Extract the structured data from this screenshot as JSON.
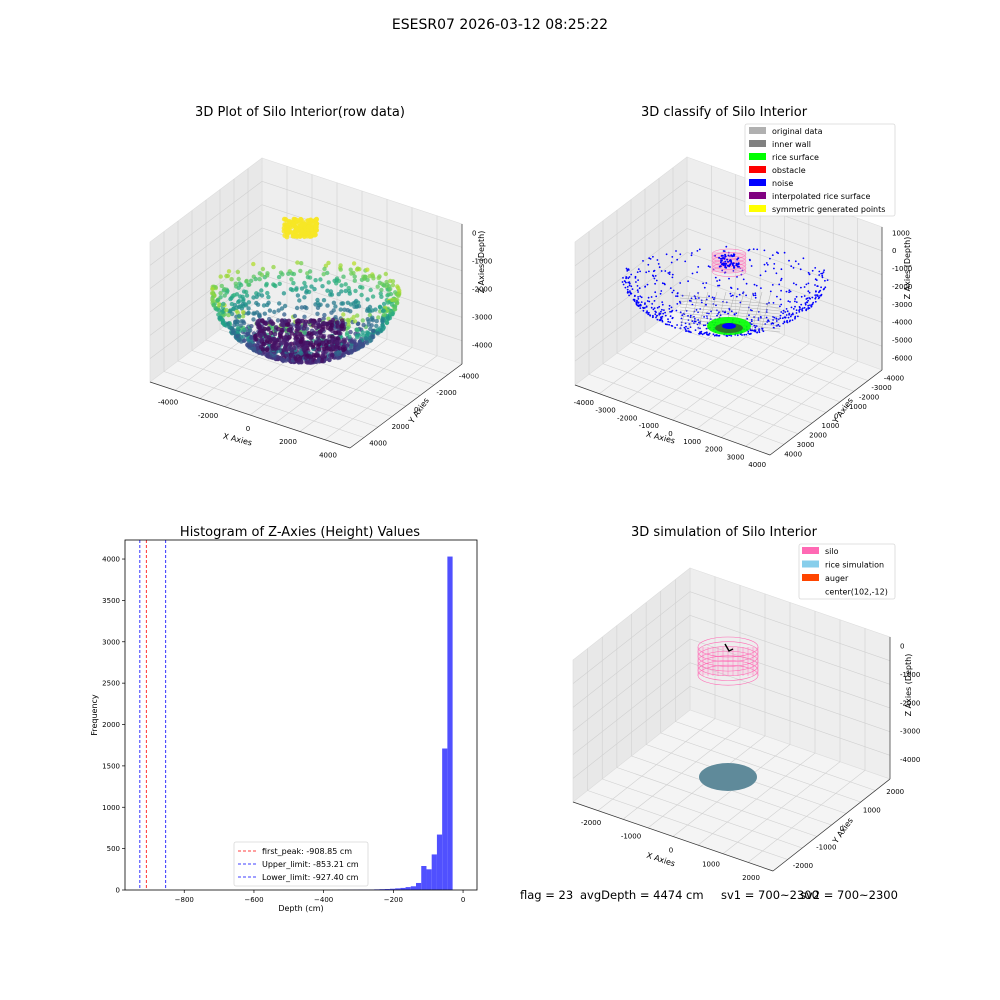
{
  "figure": {
    "title": "ESESR07 2026-03-12 08:25:22",
    "footer": {
      "flag": "flag = 23",
      "avg_depth": "avgDepth = 4474 cm",
      "sv1": "sv1 = 700~2300",
      "sv2": "sv2 = 700~2300"
    }
  },
  "colors": {
    "original_data": "#b0b0b0",
    "inner_wall": "#808080",
    "rice_surface": "#00ff00",
    "obstacle": "#ff0000",
    "noise": "#0000ff",
    "interpolated_rice_surface": "#800080",
    "symmetric_generated_points": "#ffff00",
    "silo": "#ff69b4",
    "rice_simulation": "#87ceeb",
    "auger": "#ff4500",
    "histogram_bar": "#5050ff"
  },
  "chart_data": [
    {
      "type": "scatter",
      "projection": "3d",
      "title": "3D Plot of Silo Interior(row data)",
      "xlabel": "X Axies",
      "ylabel": "Y Axies",
      "zlabel": "Z Axies (Depth)",
      "x_ticks": [
        "-4000",
        "-2000",
        "0",
        "2000",
        "4000"
      ],
      "y_ticks": [
        "-4000",
        "-2000",
        "0",
        "2000",
        "4000"
      ],
      "z_ticks": [
        "0",
        "-1000",
        "-2000",
        "-3000",
        "-4000"
      ],
      "xlim": [
        -4500,
        4500
      ],
      "ylim": [
        -4500,
        4500
      ],
      "zlim": [
        -4500,
        200
      ],
      "colormap": "viridis",
      "bowl_radius": 3900,
      "point_count": 1200
    },
    {
      "type": "scatter",
      "projection": "3d",
      "title": "3D classify of Silo Interior",
      "xlabel": "X Axies",
      "ylabel": "Y Axies",
      "zlabel": "Z Axies (Depth)",
      "x_ticks": [
        "-4000",
        "-3000",
        "-2000",
        "-1000",
        "0",
        "1000",
        "2000",
        "3000",
        "4000"
      ],
      "y_ticks": [
        "-4000",
        "-3000",
        "-2000",
        "-1000",
        "0",
        "1000",
        "2000",
        "3000",
        "4000"
      ],
      "z_ticks": [
        "1000",
        "0",
        "-1000",
        "-2000",
        "-3000",
        "-4000",
        "-5000",
        "-6000"
      ],
      "xlim": [
        -4200,
        4200
      ],
      "ylim": [
        -4200,
        4200
      ],
      "zlim": [
        -6500,
        1200
      ],
      "legend_position": "top-right",
      "legend": [
        {
          "label": "original data",
          "color_key": "original_data"
        },
        {
          "label": "inner wall",
          "color_key": "inner_wall"
        },
        {
          "label": "rice surface",
          "color_key": "rice_surface"
        },
        {
          "label": "obstacle",
          "color_key": "obstacle"
        },
        {
          "label": "noise",
          "color_key": "noise"
        },
        {
          "label": "interpolated rice surface",
          "color_key": "interpolated_rice_surface"
        },
        {
          "label": "symmetric generated points",
          "color_key": "symmetric_generated_points"
        }
      ]
    },
    {
      "type": "bar",
      "subtype": "histogram",
      "title": "Histogram of Z-Axies (Height) Values",
      "xlabel": "Depth (cm)",
      "ylabel": "Frequency",
      "xlim": [
        -970,
        40
      ],
      "ylim": [
        0,
        4230
      ],
      "x_ticks": [
        -800,
        -600,
        -400,
        -200,
        0
      ],
      "y_ticks": [
        0,
        500,
        1000,
        1500,
        2000,
        2500,
        3000,
        3500,
        4000
      ],
      "bin_width": 15,
      "bins": [
        {
          "x0": -360,
          "value": 2
        },
        {
          "x0": -345,
          "value": 3
        },
        {
          "x0": -330,
          "value": 3
        },
        {
          "x0": -315,
          "value": 4
        },
        {
          "x0": -300,
          "value": 5
        },
        {
          "x0": -285,
          "value": 5
        },
        {
          "x0": -270,
          "value": 6
        },
        {
          "x0": -255,
          "value": 8
        },
        {
          "x0": -240,
          "value": 10
        },
        {
          "x0": -225,
          "value": 12
        },
        {
          "x0": -210,
          "value": 15
        },
        {
          "x0": -195,
          "value": 20
        },
        {
          "x0": -180,
          "value": 25
        },
        {
          "x0": -165,
          "value": 35
        },
        {
          "x0": -150,
          "value": 45
        },
        {
          "x0": -135,
          "value": 85
        },
        {
          "x0": -120,
          "value": 290
        },
        {
          "x0": -105,
          "value": 250
        },
        {
          "x0": -90,
          "value": 430
        },
        {
          "x0": -75,
          "value": 670
        },
        {
          "x0": -60,
          "value": 1710
        },
        {
          "x0": -45,
          "value": 4030
        }
      ],
      "vlines": [
        {
          "label": "first_peak: -908.85 cm",
          "x": -908.85,
          "color": "#ff0000"
        },
        {
          "label": "Upper_limit: -853.21 cm",
          "x": -853.21,
          "color": "#0000ff"
        },
        {
          "label": "Lower_limit: -927.40 cm",
          "x": -927.4,
          "color": "#0000ff"
        }
      ],
      "legend_position": "lower-center"
    },
    {
      "type": "scatter",
      "projection": "3d",
      "title": "3D simulation of Silo Interior",
      "xlabel": "X Axies",
      "ylabel": "Y Axies",
      "zlabel": "Z Axies (Depth)",
      "x_ticks": [
        "-2000",
        "-1000",
        "0",
        "1000",
        "2000"
      ],
      "y_ticks": [
        "2000",
        "1000",
        "0",
        "-1000",
        "-2000"
      ],
      "z_ticks": [
        "0",
        "-1000",
        "-2000",
        "-3000",
        "-4000"
      ],
      "xlim": [
        -2500,
        2500
      ],
      "ylim": [
        -2500,
        2500
      ],
      "zlim": [
        -4700,
        400
      ],
      "legend_position": "top-right",
      "legend": [
        {
          "label": "silo",
          "color_key": "silo"
        },
        {
          "label": "rice simulation",
          "color_key": "rice_simulation"
        },
        {
          "label": "auger",
          "color_key": "auger"
        },
        {
          "label": "center(102,-12)",
          "color_key": ""
        }
      ]
    }
  ]
}
